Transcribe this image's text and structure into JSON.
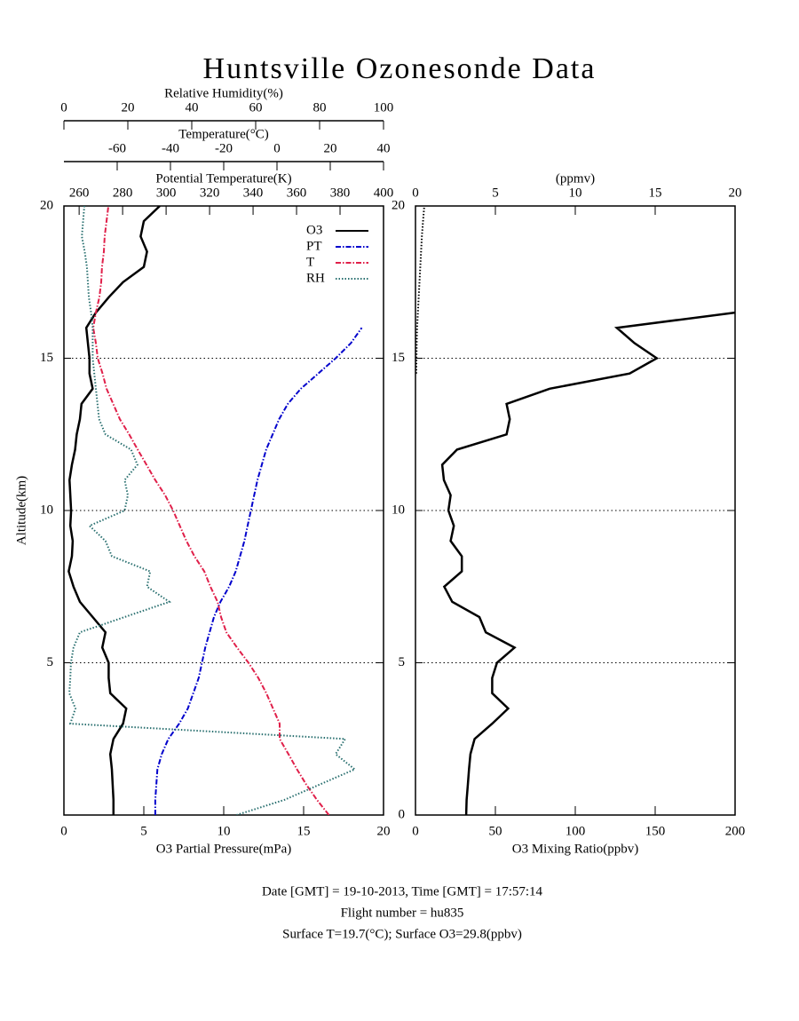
{
  "title": "Huntsville Ozonesonde Data",
  "footer": [
    "Date [GMT] = 19-10-2013,  Time [GMT] = 17:57:14",
    "Flight number = hu835",
    "Surface T=19.7(°C); Surface O3=29.8(ppbv)"
  ],
  "chart_data": [
    {
      "type": "line",
      "ylabel": "Altitude(km)",
      "ylim": [
        0,
        20
      ],
      "yticks": [
        5,
        10,
        15,
        20
      ],
      "grid": true,
      "legend": "upper right",
      "xlabel": "O3 Partial Pressure(mPa)",
      "xlim": [
        0,
        20
      ],
      "xticks": [
        0,
        5,
        10,
        15,
        20
      ],
      "x2label": "Potential Temperature(K)",
      "x2lim": [
        253,
        400
      ],
      "x2ticks": [
        260,
        280,
        300,
        320,
        340,
        360,
        380,
        400
      ],
      "x3label": "Temperature(°C)",
      "x3lim": [
        -80,
        40
      ],
      "x3ticks": [
        -60,
        -40,
        -20,
        0,
        20,
        40
      ],
      "x4label": "Relative Humidity(%)",
      "x4lim": [
        0,
        100
      ],
      "x4ticks": [
        0,
        20,
        40,
        60,
        80,
        100
      ],
      "y": [
        0,
        0.5,
        1,
        1.5,
        2,
        2.5,
        3,
        3.5,
        4,
        4.5,
        5,
        5.5,
        6,
        6.5,
        7,
        7.5,
        8,
        8.5,
        9,
        9.5,
        10,
        10.5,
        11,
        11.5,
        12,
        12.5,
        13,
        13.5,
        14,
        14.5,
        15,
        15.5,
        16,
        16.5,
        17,
        17.5,
        18,
        18.5,
        19,
        19.5,
        20
      ],
      "series": [
        {
          "name": "O3",
          "color": "#000000",
          "axis": "x",
          "style": "solid",
          "values": [
            3.1,
            3.1,
            3.05,
            3.0,
            2.9,
            3.1,
            3.7,
            3.9,
            2.9,
            2.8,
            2.8,
            2.4,
            2.6,
            1.8,
            1.0,
            0.6,
            0.3,
            0.5,
            0.55,
            0.4,
            0.45,
            0.4,
            0.35,
            0.5,
            0.7,
            0.8,
            1.0,
            1.1,
            1.8,
            1.6,
            1.6,
            1.5,
            1.4,
            2.0,
            2.8,
            3.7,
            5.0,
            5.2,
            4.8,
            5.0,
            6.0
          ]
        },
        {
          "name": "PT",
          "color": "#0000cc",
          "axis": "x2",
          "style": "dashdot",
          "values": [
            295,
            295,
            295.5,
            296,
            298,
            301,
            306,
            310,
            312.5,
            315,
            316.5,
            318,
            320,
            322,
            325,
            329,
            332,
            334,
            336,
            337.5,
            339,
            340.5,
            342,
            344,
            346,
            349,
            352,
            356,
            362,
            370,
            378,
            385,
            390,
            null,
            null,
            null,
            null,
            null,
            null,
            null,
            null
          ]
        },
        {
          "name": "T",
          "color": "#e0204a",
          "axis": "x3",
          "style": "dashdot",
          "values": [
            19.5,
            15,
            11,
            7.5,
            4.3,
            1,
            1,
            -1.5,
            -4,
            -7,
            -10.7,
            -15,
            -19,
            -21,
            -22.3,
            -25,
            -27.3,
            -31,
            -34,
            -36.5,
            -39,
            -42,
            -45.7,
            -49,
            -52.3,
            -55.5,
            -59,
            -61.5,
            -64,
            -65.5,
            -67.3,
            -68,
            -69,
            -68,
            -66.7,
            -66,
            -65.7,
            -65,
            -64.7,
            -64,
            -63.3
          ]
        },
        {
          "name": "RH",
          "color": "#2a7070",
          "axis": "x4",
          "style": "dotted",
          "values": [
            54,
            69,
            80,
            91,
            85,
            88,
            2,
            3.6,
            1.7,
            2,
            2.2,
            3,
            5,
            19,
            33,
            26,
            27,
            15,
            13,
            8,
            19,
            20,
            19,
            23,
            21,
            13,
            11,
            10.5,
            10,
            9.5,
            9,
            9,
            9,
            8.5,
            7.8,
            7.5,
            7.2,
            6.5,
            5.6,
            6,
            6.4
          ]
        }
      ]
    },
    {
      "type": "line",
      "ylim": [
        0,
        20
      ],
      "yticks": [
        0,
        5,
        10,
        15,
        20
      ],
      "grid": true,
      "xlabel": "O3 Mixing Ratio(ppbv)",
      "xlim": [
        0,
        200
      ],
      "xticks": [
        0,
        50,
        100,
        150,
        200
      ],
      "x2label": "(ppmv)",
      "x2lim": [
        0,
        20
      ],
      "x2ticks": [
        0,
        5,
        10,
        15,
        20
      ],
      "y": [
        0,
        0.5,
        1,
        1.5,
        2,
        2.5,
        3,
        3.5,
        4,
        4.5,
        5,
        5.5,
        6,
        6.5,
        7,
        7.5,
        8,
        8.5,
        9,
        9.5,
        10,
        10.5,
        11,
        11.5,
        12,
        12.5,
        13,
        13.5,
        14,
        14.5,
        15,
        15.5,
        16,
        16.5,
        17,
        17.5,
        18,
        18.5,
        19,
        19.5,
        20
      ],
      "series": [
        {
          "color": "#000000",
          "axis": "x",
          "style": "solid",
          "values": [
            31.7,
            32,
            32.8,
            33.5,
            34.4,
            37,
            48,
            58,
            48,
            48,
            51,
            62,
            44,
            40,
            23,
            18,
            29,
            29,
            22,
            24,
            20.6,
            22,
            17.8,
            16.7,
            26,
            57,
            59,
            57,
            84,
            134,
            151,
            137,
            126,
            200,
            null,
            null,
            null,
            null,
            null,
            null,
            null
          ]
        },
        {
          "color": "#000000",
          "axis": "x2",
          "style": "dotted",
          "values": [
            null,
            null,
            null,
            null,
            null,
            null,
            null,
            null,
            null,
            null,
            null,
            null,
            null,
            null,
            null,
            null,
            null,
            null,
            null,
            null,
            null,
            null,
            null,
            null,
            null,
            null,
            null,
            null,
            null,
            0.05,
            0.06,
            0.08,
            0.1,
            0.15,
            0.2,
            0.25,
            0.3,
            0.35,
            0.4,
            0.47,
            0.55
          ]
        }
      ]
    }
  ]
}
